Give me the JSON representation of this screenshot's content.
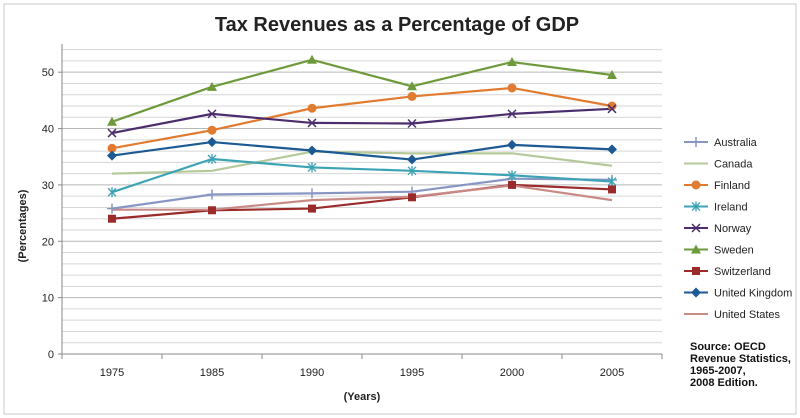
{
  "chart_data": {
    "type": "line",
    "title": "Tax Revenues as a Percentage of GDP",
    "xlabel": "(Years)",
    "ylabel": "(Percentages)",
    "ylim": [
      0,
      55
    ],
    "yticks": [
      0,
      10,
      20,
      30,
      40,
      50
    ],
    "x": [
      "1975",
      "1985",
      "1990",
      "1995",
      "2000",
      "2005"
    ],
    "grid": true,
    "legend_position": "right",
    "series": [
      {
        "name": "Australia",
        "color": "#8896c4",
        "marker": "plus",
        "values": [
          25.8,
          28.3,
          28.5,
          28.8,
          31.1,
          30.9
        ]
      },
      {
        "name": "Canada",
        "color": "#b5c99a",
        "marker": "none",
        "values": [
          32.0,
          32.5,
          35.9,
          35.6,
          35.6,
          33.4
        ]
      },
      {
        "name": "Finland",
        "color": "#e07b30",
        "marker": "circle",
        "values": [
          36.5,
          39.7,
          43.6,
          45.7,
          47.2,
          44.0
        ]
      },
      {
        "name": "Ireland",
        "color": "#3ca3b5",
        "marker": "asterisk",
        "values": [
          28.7,
          34.6,
          33.1,
          32.5,
          31.7,
          30.6
        ]
      },
      {
        "name": "Norway",
        "color": "#4b2d6e",
        "marker": "x",
        "values": [
          39.2,
          42.6,
          41.0,
          40.9,
          42.6,
          43.5
        ]
      },
      {
        "name": "Sweden",
        "color": "#6e9a3c",
        "marker": "triangle",
        "values": [
          41.2,
          47.4,
          52.2,
          47.5,
          51.8,
          49.5
        ]
      },
      {
        "name": "Switzerland",
        "color": "#9b2a2a",
        "marker": "square",
        "values": [
          24.0,
          25.5,
          25.8,
          27.8,
          30.0,
          29.2
        ]
      },
      {
        "name": "United Kingdom",
        "color": "#1c5a94",
        "marker": "diamond",
        "values": [
          35.2,
          37.6,
          36.1,
          34.5,
          37.1,
          36.3
        ]
      },
      {
        "name": "United States",
        "color": "#c98a86",
        "marker": "none",
        "values": [
          25.6,
          25.6,
          27.3,
          27.9,
          29.9,
          27.3
        ]
      }
    ],
    "source_lines": [
      "Source: OECD",
      "Revenue Statistics,",
      "1965-2007,",
      "2008 Edition."
    ]
  }
}
